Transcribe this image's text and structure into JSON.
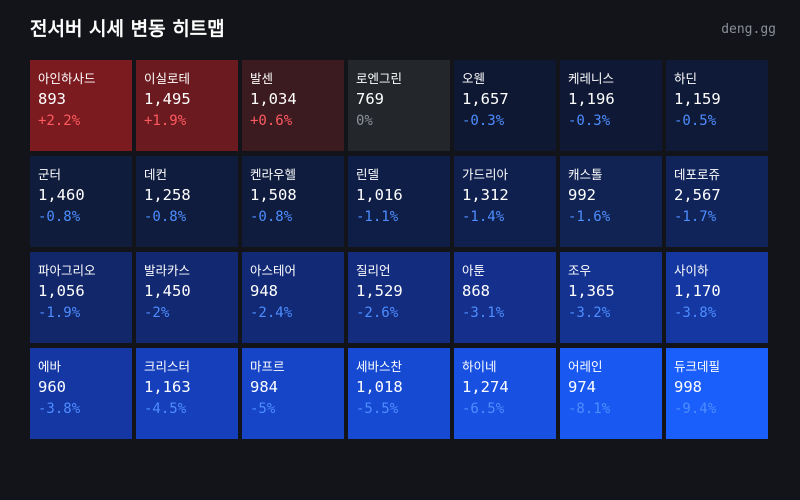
{
  "header": {
    "title": "전서버 시세 변동 히트맵",
    "site": "deng.gg"
  },
  "cells": [
    {
      "name": "아인하사드",
      "price": "893",
      "change": "+2.2%",
      "color": "#7b1a1f",
      "change_color": "#ff5a60"
    },
    {
      "name": "이실로테",
      "price": "1,495",
      "change": "+1.9%",
      "color": "#6b1a1f",
      "change_color": "#ff5a60"
    },
    {
      "name": "발센",
      "price": "1,034",
      "change": "+0.6%",
      "color": "#3b1a20",
      "change_color": "#ff5a60"
    },
    {
      "name": "로엔그린",
      "price": "769",
      "change": "0%",
      "color": "#23272c",
      "change_color": "#8c9198"
    },
    {
      "name": "오웬",
      "price": "1,657",
      "change": "-0.3%",
      "color": "#0f1832",
      "change_color": "#4d8dff"
    },
    {
      "name": "케레니스",
      "price": "1,196",
      "change": "-0.3%",
      "color": "#0f1834",
      "change_color": "#4d8dff"
    },
    {
      "name": "하딘",
      "price": "1,159",
      "change": "-0.5%",
      "color": "#0f1a38",
      "change_color": "#4d8dff"
    },
    {
      "name": "군터",
      "price": "1,460",
      "change": "-0.8%",
      "color": "#0f1c3c",
      "change_color": "#4d8dff"
    },
    {
      "name": "데컨",
      "price": "1,258",
      "change": "-0.8%",
      "color": "#0f1c3e",
      "change_color": "#4d8dff"
    },
    {
      "name": "켄라우헬",
      "price": "1,508",
      "change": "-0.8%",
      "color": "#0f1c3e",
      "change_color": "#4d8dff"
    },
    {
      "name": "린델",
      "price": "1,016",
      "change": "-1.1%",
      "color": "#0f1e46",
      "change_color": "#4d8dff"
    },
    {
      "name": "가드리아",
      "price": "1,312",
      "change": "-1.4%",
      "color": "#10204e",
      "change_color": "#4d8dff"
    },
    {
      "name": "캐스톨",
      "price": "992",
      "change": "-1.6%",
      "color": "#112352",
      "change_color": "#4d8dff"
    },
    {
      "name": "데포로쥬",
      "price": "2,567",
      "change": "-1.7%",
      "color": "#11245a",
      "change_color": "#4d8dff"
    },
    {
      "name": "파아그리오",
      "price": "1,056",
      "change": "-1.9%",
      "color": "#12266a",
      "change_color": "#4d8dff"
    },
    {
      "name": "발라카스",
      "price": "1,450",
      "change": "-2%",
      "color": "#122870",
      "change_color": "#4d8dff"
    },
    {
      "name": "아스테어",
      "price": "948",
      "change": "-2.4%",
      "color": "#122a76",
      "change_color": "#4d8dff"
    },
    {
      "name": "질리언",
      "price": "1,529",
      "change": "-2.6%",
      "color": "#132c7e",
      "change_color": "#4d8dff"
    },
    {
      "name": "아툰",
      "price": "868",
      "change": "-3.1%",
      "color": "#14308c",
      "change_color": "#4d8dff"
    },
    {
      "name": "조우",
      "price": "1,365",
      "change": "-3.2%",
      "color": "#143290",
      "change_color": "#4d8dff"
    },
    {
      "name": "사이하",
      "price": "1,170",
      "change": "-3.8%",
      "color": "#1537a2",
      "change_color": "#4d8dff"
    },
    {
      "name": "에바",
      "price": "960",
      "change": "-3.8%",
      "color": "#1537a4",
      "change_color": "#4d8dff"
    },
    {
      "name": "크리스터",
      "price": "1,163",
      "change": "-4.5%",
      "color": "#1640bb",
      "change_color": "#4d8dff"
    },
    {
      "name": "마프르",
      "price": "984",
      "change": "-5%",
      "color": "#1645c8",
      "change_color": "#4d8dff"
    },
    {
      "name": "세바스찬",
      "price": "1,018",
      "change": "-5.5%",
      "color": "#174ad2",
      "change_color": "#4d8dff"
    },
    {
      "name": "하이네",
      "price": "1,274",
      "change": "-6.5%",
      "color": "#1850e2",
      "change_color": "#4d8dff"
    },
    {
      "name": "어레인",
      "price": "974",
      "change": "-8.1%",
      "color": "#1a58f2",
      "change_color": "#4d8dff"
    },
    {
      "name": "듀크데필",
      "price": "998",
      "change": "-9.4%",
      "color": "#1a5efc",
      "change_color": "#4d8dff"
    }
  ]
}
